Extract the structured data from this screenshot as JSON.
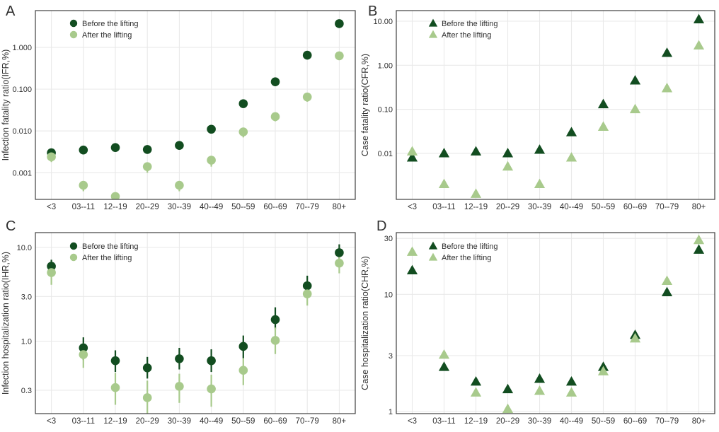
{
  "figure": {
    "colors": {
      "before": "#124d20",
      "after": "#a8ca8c",
      "grid": "#e9e9e9",
      "panel_border": "#3f3f3f",
      "text": "#2f2f2f",
      "background": "#ffffff"
    },
    "legend": {
      "before": "Before the lifting",
      "after": "After the lifting"
    },
    "categories": [
      "<3",
      "03--11",
      "12--19",
      "20--29",
      "30--39",
      "40--49",
      "50--59",
      "60--69",
      "70--79",
      "80+"
    ]
  },
  "chart_data": [
    {
      "type": "scatter",
      "panel": "A",
      "title": "",
      "xlabel": "",
      "ylabel": "Infection fatality ratio(IFR,%)",
      "marker": "circle",
      "yscale": "log",
      "ylim": [
        0.00023,
        7.6
      ],
      "yticks": [
        1.0,
        0.1,
        0.01,
        0.001
      ],
      "ytick_labels": [
        "1.000",
        "0.100",
        "0.010",
        "0.001"
      ],
      "grid": true,
      "legend_position": "top-left",
      "categories": [
        "<3",
        "03--11",
        "12--19",
        "20--29",
        "30--39",
        "40--49",
        "50--59",
        "60--69",
        "70--79",
        "80+"
      ],
      "series": [
        {
          "name": "Before the lifting",
          "values": [
            0.003,
            0.0035,
            0.004,
            0.0036,
            0.0045,
            0.011,
            0.045,
            0.15,
            0.65,
            3.7
          ]
        },
        {
          "name": "After the lifting",
          "values": [
            0.0024,
            0.0005,
            0.00027,
            0.0014,
            0.0005,
            0.002,
            0.0095,
            0.022,
            0.065,
            0.63
          ],
          "err_lo": [
            0.0018,
            0.00036,
            0.0002,
            0.001,
            0.00036,
            0.0014,
            0.007,
            0.017,
            0.05,
            0.5
          ],
          "err_hi": [
            0.0027,
            0.00055,
            0.0003,
            0.0016,
            0.00055,
            0.0022,
            0.0105,
            0.025,
            0.072,
            0.7
          ]
        }
      ]
    },
    {
      "type": "scatter",
      "panel": "B",
      "title": "",
      "xlabel": "",
      "ylabel": "Case fatality ratio(CFR,%)",
      "marker": "triangle",
      "yscale": "log",
      "ylim": [
        0.0009,
        17.4
      ],
      "yticks": [
        10.0,
        1.0,
        0.1,
        0.01
      ],
      "ytick_labels": [
        "10.00",
        "1.00",
        "0.10",
        "0.01"
      ],
      "grid": true,
      "legend_position": "top-left",
      "categories": [
        "<3",
        "03--11",
        "12--19",
        "20--29",
        "30--39",
        "40--49",
        "50--59",
        "60--69",
        "70--79",
        "80+"
      ],
      "series": [
        {
          "name": "Before the lifting",
          "values": [
            0.008,
            0.01,
            0.011,
            0.01,
            0.012,
            0.03,
            0.13,
            0.45,
            1.9,
            11.0
          ]
        },
        {
          "name": "After the lifting",
          "values": [
            0.011,
            0.002,
            0.0012,
            0.005,
            0.002,
            0.008,
            0.04,
            0.1,
            0.3,
            2.8
          ]
        }
      ]
    },
    {
      "type": "scatter",
      "panel": "C",
      "title": "",
      "xlabel": "",
      "ylabel": "Infection hospitalization ratio(IHR,%)",
      "marker": "circle",
      "yscale": "log",
      "ylim": [
        0.169,
        14.4
      ],
      "yticks": [
        10.0,
        3.0,
        1.0,
        0.3
      ],
      "ytick_labels": [
        "10.0",
        "3.0",
        "1.0",
        "0.3"
      ],
      "grid": true,
      "legend_position": "top-left",
      "categories": [
        "<3",
        "03--11",
        "12--19",
        "20--29",
        "30--39",
        "40--49",
        "50--59",
        "60--69",
        "70--79",
        "80+"
      ],
      "series": [
        {
          "name": "Before the lifting",
          "values": [
            6.3,
            0.85,
            0.62,
            0.52,
            0.65,
            0.62,
            0.88,
            1.7,
            3.9,
            8.8
          ],
          "err_lo": [
            5.0,
            0.63,
            0.47,
            0.4,
            0.5,
            0.47,
            0.66,
            1.35,
            3.1,
            7.2
          ],
          "err_hi": [
            7.4,
            1.1,
            0.8,
            0.68,
            0.85,
            0.82,
            1.15,
            2.3,
            5.0,
            10.8
          ]
        },
        {
          "name": "After the lifting",
          "values": [
            5.4,
            0.72,
            0.32,
            0.25,
            0.33,
            0.31,
            0.49,
            1.02,
            3.2,
            6.8
          ],
          "err_lo": [
            4.0,
            0.52,
            0.21,
            0.16,
            0.22,
            0.2,
            0.34,
            0.73,
            2.4,
            5.3
          ],
          "err_hi": [
            7.0,
            0.95,
            0.46,
            0.38,
            0.45,
            0.44,
            0.66,
            1.4,
            4.1,
            8.6
          ]
        }
      ]
    },
    {
      "type": "scatter",
      "panel": "D",
      "title": "",
      "xlabel": "",
      "ylabel": "Case hospitalization ratio(CHR,%)",
      "marker": "triangle",
      "yscale": "log",
      "ylim": [
        0.96,
        33.6
      ],
      "yticks": [
        30.0,
        10.0,
        3.0,
        1.0
      ],
      "ytick_labels": [
        "30",
        "10",
        "3",
        "1"
      ],
      "grid": true,
      "legend_position": "top-left",
      "categories": [
        "<3",
        "03--11",
        "12--19",
        "20--29",
        "30--39",
        "40--49",
        "50--59",
        "60--69",
        "70--79",
        "80+"
      ],
      "series": [
        {
          "name": "Before the lifting",
          "values": [
            16.0,
            2.4,
            1.8,
            1.55,
            1.9,
            1.8,
            2.4,
            4.5,
            10.4,
            24.0
          ]
        },
        {
          "name": "After the lifting",
          "values": [
            23.0,
            3.05,
            1.45,
            1.05,
            1.5,
            1.45,
            2.2,
            4.2,
            13.0,
            29.0
          ]
        }
      ]
    }
  ]
}
